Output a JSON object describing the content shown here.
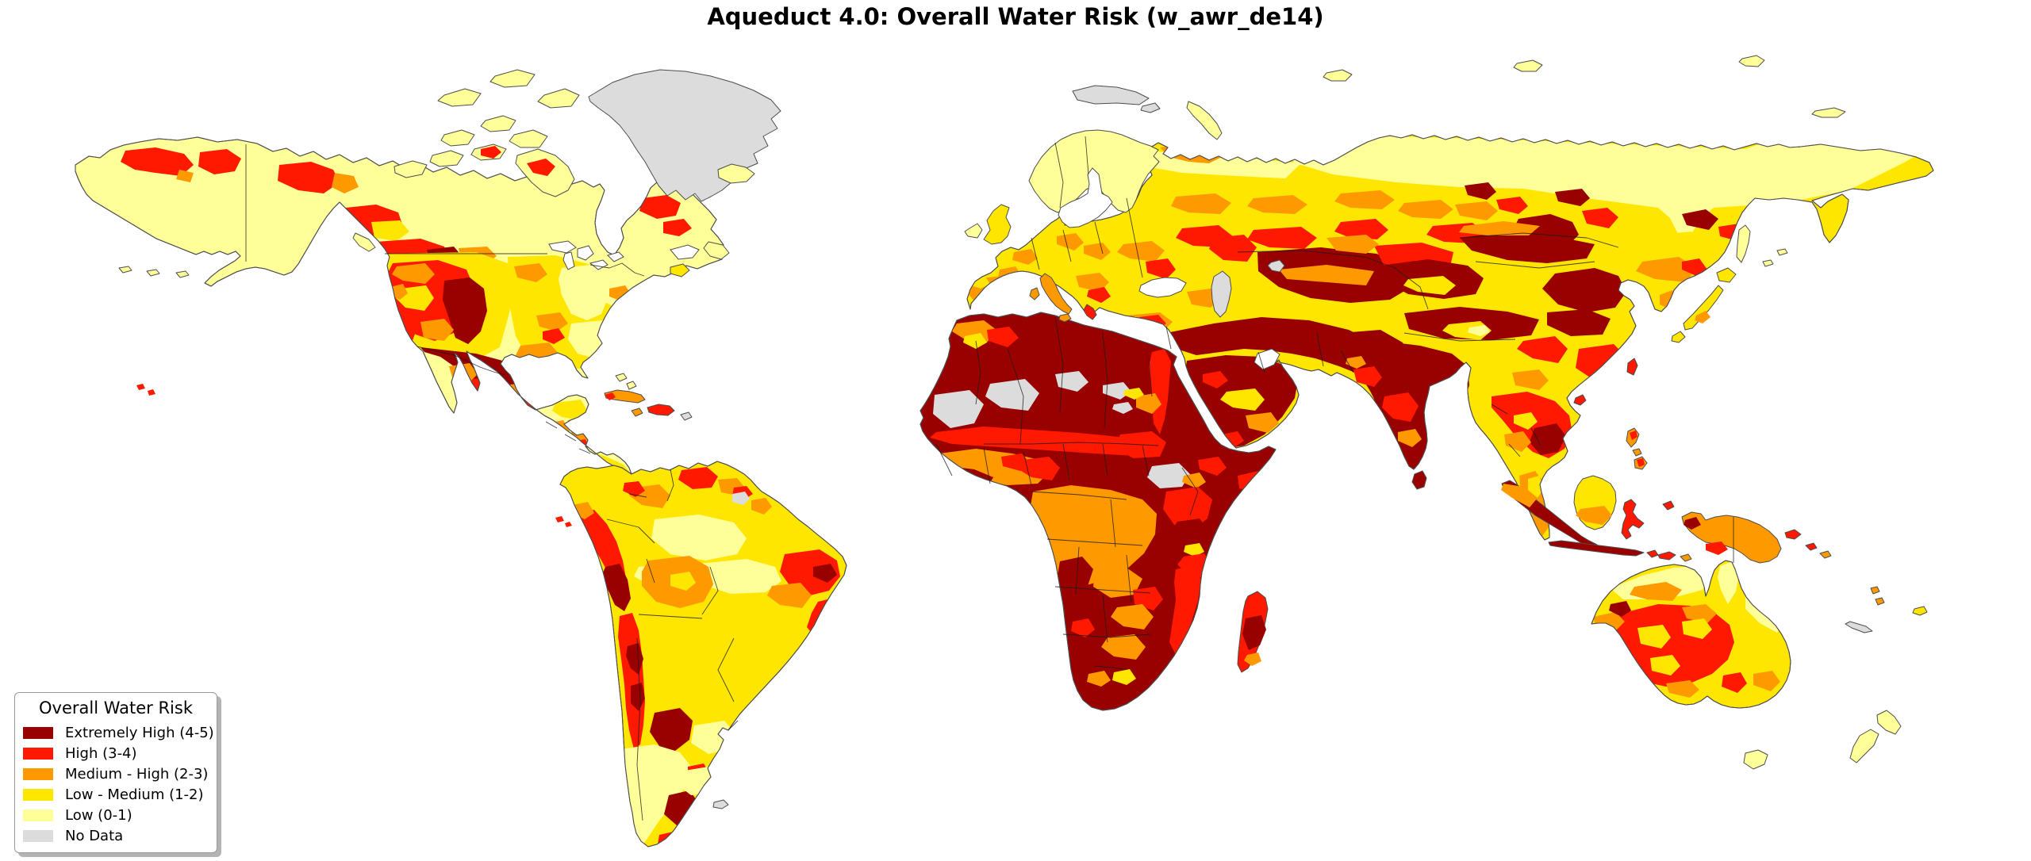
{
  "title": "Aqueduct 4.0: Overall Water Risk (w_awr_de14)",
  "legend": {
    "title": "Overall Water Risk",
    "items": [
      {
        "key": "extremely_high",
        "label": "Extremely High (4-5)",
        "color": "#990000"
      },
      {
        "key": "high",
        "label": "High (3-4)",
        "color": "#FF1900"
      },
      {
        "key": "medium_high",
        "label": "Medium - High (2-3)",
        "color": "#FF9900"
      },
      {
        "key": "low_medium",
        "label": "Low - Medium (1-2)",
        "color": "#FFE600"
      },
      {
        "key": "low",
        "label": "Low (0-1)",
        "color": "#FFFF99"
      },
      {
        "key": "no_data",
        "label": "No Data",
        "color": "#DCDCDC"
      }
    ]
  },
  "map": {
    "type": "world_choropleth",
    "ocean_color": "#FFFFFF",
    "coastline_color": "#4D4D4D",
    "country_border_color": "#1A1A1A",
    "regions": [
      {
        "name": "Canada and Alaska",
        "dominant_risk": "Low (0-1)",
        "secondary": "scattered High patches"
      },
      {
        "name": "Western United States",
        "dominant_risk": "High (3-4)",
        "secondary": "Extremely High in Colorado basin"
      },
      {
        "name": "Central and Eastern United States",
        "dominant_risk": "Low - Medium (1-2)",
        "secondary": "Low and Medium - High patches"
      },
      {
        "name": "Mexico",
        "dominant_risk": "Extremely High (4-5)",
        "secondary": "High and Medium - High patches"
      },
      {
        "name": "Central America and Caribbean",
        "dominant_risk": "Medium - High (2-3)",
        "secondary": "High on Hispaniola"
      },
      {
        "name": "Amazon Basin",
        "dominant_risk": "Low - Medium (1-2)",
        "secondary": "Low patches"
      },
      {
        "name": "Andes, Peru and Chile",
        "dominant_risk": "High (3-4)",
        "secondary": "Extremely High strips"
      },
      {
        "name": "Bolivia and Gran Chaco",
        "dominant_risk": "Medium - High (2-3)"
      },
      {
        "name": "Argentina and Patagonia",
        "dominant_risk": "Low (0-1)",
        "secondary": "Extremely High patches"
      },
      {
        "name": "Greenland",
        "dominant_risk": "No Data"
      },
      {
        "name": "Scandinavia and British Isles",
        "dominant_risk": "Low (0-1)",
        "secondary": "Low - Medium in UK"
      },
      {
        "name": "Western and Central Europe",
        "dominant_risk": "Low - Medium (1-2)",
        "secondary": "Medium - High patches"
      },
      {
        "name": "Iberia and Mediterranean Europe",
        "dominant_risk": "Medium - High (2-3)",
        "secondary": "High patches"
      },
      {
        "name": "North Africa and Sahara",
        "dominant_risk": "Extremely High (4-5)",
        "secondary": "No Data patches over desert"
      },
      {
        "name": "Sahel and West Africa",
        "dominant_risk": "High (3-4)",
        "secondary": "Medium - High coastal belt"
      },
      {
        "name": "Congo Basin",
        "dominant_risk": "Medium - High (2-3)"
      },
      {
        "name": "South Sudan",
        "dominant_risk": "No Data"
      },
      {
        "name": "East and Southern Africa",
        "dominant_risk": "High (3-4)",
        "secondary": "Extremely High in southwest"
      },
      {
        "name": "Middle East and Arabian Peninsula",
        "dominant_risk": "Extremely High (4-5)"
      },
      {
        "name": "Central Asia and Kazakhstan",
        "dominant_risk": "Extremely High (4-5)",
        "secondary": "High and Medium - High fringes"
      },
      {
        "name": "European Russia",
        "dominant_risk": "Low - Medium (1-2)",
        "secondary": "Medium - High and High bands to the south"
      },
      {
        "name": "Siberia",
        "dominant_risk": "Low (0-1)",
        "secondary": "High and Extremely High patches in the south"
      },
      {
        "name": "India",
        "dominant_risk": "Extremely High (4-5)"
      },
      {
        "name": "Northern and Western China, Mongolia",
        "dominant_risk": "Extremely High (4-5)",
        "secondary": "Low - Medium patches in Tarim and Manchuria"
      },
      {
        "name": "Southeastern China",
        "dominant_risk": "High (3-4)",
        "secondary": "Medium - High patches"
      },
      {
        "name": "Japan and Korea",
        "dominant_risk": "Low - Medium (1-2)"
      },
      {
        "name": "Mainland Southeast Asia",
        "dominant_risk": "High (3-4)",
        "secondary": "Extremely High along Mekong"
      },
      {
        "name": "Indonesia and Philippines",
        "dominant_risk": "Medium - High (2-3)",
        "secondary": "Extremely High on Java and Sumatra"
      },
      {
        "name": "New Guinea",
        "dominant_risk": "Medium - High (2-3)"
      },
      {
        "name": "Australian interior",
        "dominant_risk": "High (3-4)",
        "secondary": "Low - Medium and Low patches"
      },
      {
        "name": "Northern and Eastern Australia",
        "dominant_risk": "Low - Medium (1-2)"
      },
      {
        "name": "New Zealand and Tasmania",
        "dominant_risk": "Low (0-1)"
      }
    ]
  }
}
